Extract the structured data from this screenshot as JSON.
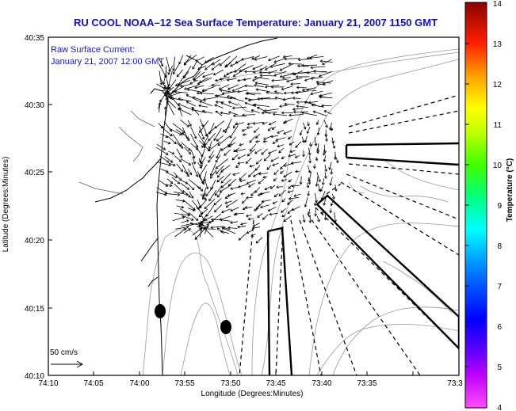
{
  "title": "RU COOL  NOAA–12  Sea Surface Temperature:  January 21, 2007 1150 GMT",
  "annotation": {
    "line1": "Raw Surface Current:",
    "line2": "January 21, 2007 12:00 GMT"
  },
  "scale_label": "50 cm/s",
  "axes": {
    "xlabel": "Longitude (Degrees:Minutes)",
    "ylabel": "Latitude (Degrees:Minutes)",
    "x_ticks": [
      "74:10",
      "74:05",
      "74:00",
      "73:55",
      "73:50",
      "73:45",
      "73:40",
      "73:35",
      "73:3"
    ],
    "y_ticks": [
      "40:35",
      "40:30",
      "40:25",
      "40:20",
      "40:15",
      "40:10"
    ]
  },
  "colorbar": {
    "label": "Temperature (°C)",
    "ticks": [
      "14",
      "13",
      "12",
      "11",
      "10",
      "9",
      "8",
      "7",
      "6",
      "5",
      "4"
    ],
    "colors": [
      "#8b0000",
      "#ff0000",
      "#ff7f00",
      "#ffff00",
      "#00ff00",
      "#00ffff",
      "#0000ff",
      "#8000ff",
      "#ff00ff"
    ]
  }
}
